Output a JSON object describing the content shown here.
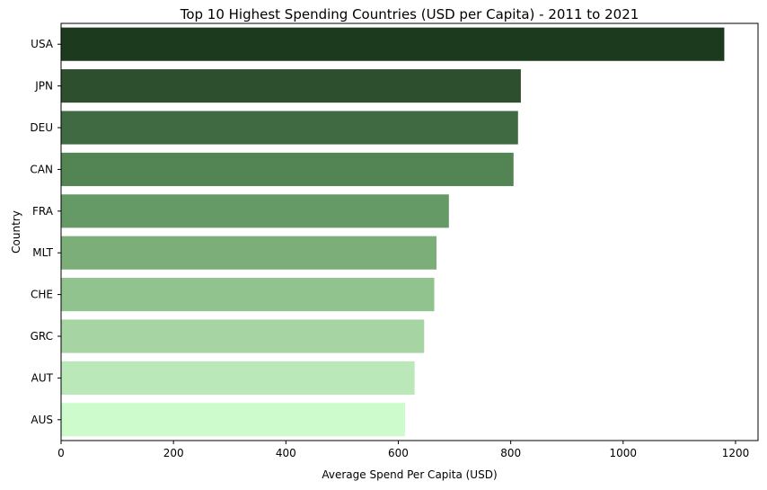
{
  "chart_data": {
    "type": "bar",
    "orientation": "horizontal",
    "title": "Top 10 Highest Spending Countries (USD per Capita) - 2011 to 2021",
    "xlabel": "Average Spend Per Capita (USD)",
    "ylabel": "Country",
    "categories": [
      "USA",
      "JPN",
      "DEU",
      "CAN",
      "FRA",
      "MLT",
      "CHE",
      "GRC",
      "AUT",
      "AUS"
    ],
    "values": [
      1180,
      818,
      813,
      805,
      690,
      668,
      664,
      646,
      629,
      612
    ],
    "colors": [
      "#1c3a1e",
      "#2d4f2e",
      "#3f6a42",
      "#528553",
      "#659a66",
      "#7cae79",
      "#91c38e",
      "#a6d4a2",
      "#bae8b8",
      "#cdfbcc"
    ],
    "xlim": [
      0,
      1240
    ],
    "xticks": [
      0,
      200,
      400,
      600,
      800,
      1000,
      1200
    ],
    "grid": false
  }
}
